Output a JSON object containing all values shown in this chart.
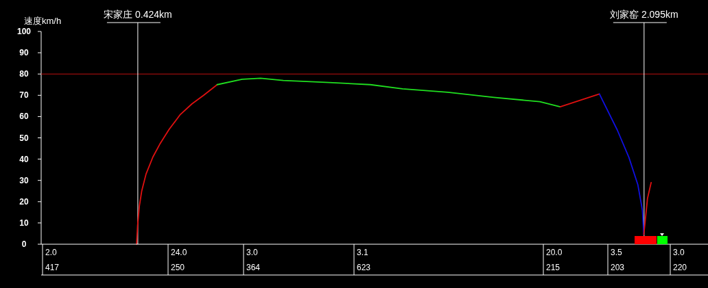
{
  "chart_data": {
    "type": "line",
    "ylabel": "速度km/h",
    "xlim": [
      0.105,
      2.306
    ],
    "ylim": [
      0,
      100
    ],
    "yticks": [
      0,
      10,
      20,
      30,
      40,
      50,
      60,
      70,
      80,
      90,
      100
    ],
    "grid": false,
    "marker": "none",
    "line_style": "solid",
    "tick_labels": "y",
    "series": [
      {
        "color": "#e01010",
        "x": [
          0.42,
          0.4233,
          0.4292,
          0.4369,
          0.4512,
          0.4738,
          0.4965,
          0.5275,
          0.5644,
          0.6029,
          0.6414,
          0.686
        ],
        "values": [
          0,
          8.7,
          18,
          25,
          33,
          41,
          47,
          54,
          61,
          66,
          70,
          75
        ]
      },
      {
        "color": "#20e020",
        "x": [
          0.686,
          0.7682,
          0.8293,
          0.9041,
          0.9811,
          1.0558,
          1.1917,
          1.2981,
          1.4475,
          1.5993,
          1.751,
          1.8182
        ],
        "values": [
          75,
          77.5,
          78,
          77,
          76.5,
          76,
          75,
          73,
          71.4,
          69,
          67,
          64.6
        ]
      },
      {
        "color": "#e01010",
        "x": [
          1.8182,
          1.9476
        ],
        "values": [
          64.6,
          70.6
        ]
      },
      {
        "color": "#1010e0",
        "x": [
          1.9476,
          2.0065,
          2.045,
          2.0744,
          2.0896,
          2.0941
        ],
        "values": [
          70.6,
          53.7,
          40.8,
          28,
          16,
          4.5
        ]
      },
      {
        "color": "#e01010",
        "x": [
          2.0941,
          2.1063,
          2.1184
        ],
        "values": [
          4.5,
          21.5,
          29
        ]
      }
    ],
    "ref_lines": [
      {
        "axis": "y",
        "value": 80,
        "color": "#c01010"
      },
      {
        "axis": "x",
        "value": 0.424,
        "label": "宋家庄 0.424km",
        "color": "#ffffff"
      },
      {
        "axis": "x",
        "value": 2.095,
        "label": "刘家窑 2.095km",
        "color": "#ffffff"
      }
    ],
    "annotations": [
      "2.0",
      "417",
      "24.0",
      "250",
      "3.0",
      "364",
      "3.1",
      "623",
      "20.0",
      "215",
      "3.5",
      "203",
      "3.0",
      "220"
    ]
  }
}
